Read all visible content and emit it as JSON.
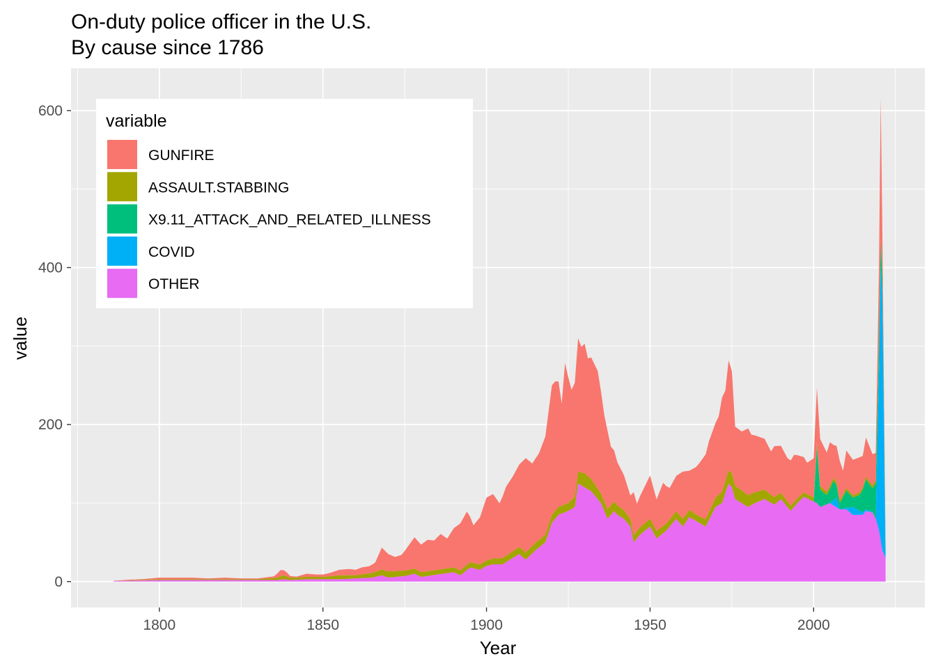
{
  "chart_data": {
    "type": "area",
    "stacked": true,
    "title": "On-duty police officer in the U.S.",
    "subtitle": "By cause since 1786",
    "xlabel": "Year",
    "ylabel": "value",
    "xlim": [
      1773,
      2034
    ],
    "ylim": [
      -33,
      654
    ],
    "x_ticks": [
      1800,
      1850,
      1900,
      1950,
      2000
    ],
    "y_ticks": [
      0,
      200,
      400,
      600
    ],
    "grid": true,
    "legend": {
      "title": "variable",
      "position": "top-left"
    },
    "series": [
      {
        "name": "OTHER",
        "color": "#E76BF3",
        "values": [
          [
            1786,
            1
          ],
          [
            1790,
            1
          ],
          [
            1800,
            2
          ],
          [
            1808,
            2
          ],
          [
            1810,
            2
          ],
          [
            1820,
            2
          ],
          [
            1830,
            2
          ],
          [
            1836,
            2
          ],
          [
            1838,
            3
          ],
          [
            1840,
            2
          ],
          [
            1845,
            3
          ],
          [
            1850,
            3
          ],
          [
            1855,
            3
          ],
          [
            1860,
            4
          ],
          [
            1865,
            5
          ],
          [
            1868,
            8
          ],
          [
            1870,
            5
          ],
          [
            1875,
            7
          ],
          [
            1878,
            10
          ],
          [
            1880,
            6
          ],
          [
            1885,
            9
          ],
          [
            1890,
            12
          ],
          [
            1892,
            8
          ],
          [
            1895,
            18
          ],
          [
            1898,
            15
          ],
          [
            1900,
            20
          ],
          [
            1902,
            22
          ],
          [
            1905,
            22
          ],
          [
            1908,
            30
          ],
          [
            1910,
            35
          ],
          [
            1912,
            28
          ],
          [
            1915,
            40
          ],
          [
            1918,
            50
          ],
          [
            1920,
            75
          ],
          [
            1922,
            85
          ],
          [
            1925,
            90
          ],
          [
            1927,
            95
          ],
          [
            1928,
            125
          ],
          [
            1930,
            120
          ],
          [
            1932,
            115
          ],
          [
            1935,
            100
          ],
          [
            1937,
            80
          ],
          [
            1939,
            90
          ],
          [
            1940,
            85
          ],
          [
            1942,
            80
          ],
          [
            1944,
            70
          ],
          [
            1945,
            50
          ],
          [
            1947,
            60
          ],
          [
            1950,
            70
          ],
          [
            1952,
            55
          ],
          [
            1955,
            65
          ],
          [
            1958,
            80
          ],
          [
            1960,
            70
          ],
          [
            1962,
            82
          ],
          [
            1965,
            75
          ],
          [
            1967,
            70
          ],
          [
            1970,
            95
          ],
          [
            1972,
            100
          ],
          [
            1974,
            125
          ],
          [
            1975,
            120
          ],
          [
            1976,
            105
          ],
          [
            1978,
            100
          ],
          [
            1980,
            95
          ],
          [
            1982,
            100
          ],
          [
            1985,
            105
          ],
          [
            1988,
            98
          ],
          [
            1990,
            105
          ],
          [
            1993,
            90
          ],
          [
            1995,
            100
          ],
          [
            1997,
            108
          ],
          [
            2000,
            102
          ],
          [
            2001,
            100
          ],
          [
            2002,
            95
          ],
          [
            2005,
            100
          ],
          [
            2008,
            92
          ],
          [
            2010,
            92
          ],
          [
            2012,
            85
          ],
          [
            2015,
            85
          ],
          [
            2016,
            90
          ],
          [
            2018,
            88
          ],
          [
            2019,
            80
          ],
          [
            2020,
            65
          ],
          [
            2021,
            40
          ],
          [
            2022,
            30
          ]
        ]
      },
      {
        "name": "COVID",
        "color": "#00B0F6",
        "values": [
          [
            2005,
            0
          ],
          [
            2007,
            12
          ],
          [
            2008,
            0
          ],
          [
            2010,
            2
          ],
          [
            2012,
            10
          ],
          [
            2015,
            3
          ],
          [
            2019,
            0
          ],
          [
            2020,
            205
          ],
          [
            2020.5,
            350
          ],
          [
            2021,
            330
          ],
          [
            2021.5,
            160
          ],
          [
            2022,
            0
          ]
        ]
      },
      {
        "name": "X9.11_ATTACK_AND_RELATED_ILLNESS",
        "color": "#00BF7D",
        "values": [
          [
            2000,
            0
          ],
          [
            2001,
            72
          ],
          [
            2002,
            22
          ],
          [
            2004,
            12
          ],
          [
            2006,
            25
          ],
          [
            2008,
            8
          ],
          [
            2010,
            22
          ],
          [
            2012,
            12
          ],
          [
            2014,
            20
          ],
          [
            2016,
            38
          ],
          [
            2018,
            30
          ],
          [
            2019,
            45
          ],
          [
            2020,
            40
          ],
          [
            2021,
            20
          ],
          [
            2022,
            10
          ]
        ]
      },
      {
        "name": "ASSAULT.STABBING",
        "color": "#A3A500",
        "values": [
          [
            1786,
            0
          ],
          [
            1800,
            1
          ],
          [
            1830,
            1
          ],
          [
            1836,
            3
          ],
          [
            1838,
            5
          ],
          [
            1840,
            3
          ],
          [
            1845,
            3
          ],
          [
            1850,
            3
          ],
          [
            1855,
            5
          ],
          [
            1860,
            4
          ],
          [
            1870,
            8
          ],
          [
            1880,
            6
          ],
          [
            1890,
            6
          ],
          [
            1900,
            7
          ],
          [
            1910,
            9
          ],
          [
            1920,
            10
          ],
          [
            1925,
            10
          ],
          [
            1928,
            15
          ],
          [
            1930,
            18
          ],
          [
            1935,
            12
          ],
          [
            1940,
            12
          ],
          [
            1945,
            9
          ],
          [
            1950,
            10
          ],
          [
            1955,
            9
          ],
          [
            1960,
            10
          ],
          [
            1965,
            8
          ],
          [
            1970,
            12
          ],
          [
            1975,
            18
          ],
          [
            1980,
            15
          ],
          [
            1985,
            12
          ],
          [
            1990,
            8
          ],
          [
            1995,
            6
          ],
          [
            2000,
            5
          ],
          [
            2005,
            4
          ],
          [
            2010,
            3
          ],
          [
            2015,
            3
          ],
          [
            2020,
            4
          ],
          [
            2022,
            2
          ]
        ]
      },
      {
        "name": "GUNFIRE",
        "color": "#F8766D",
        "values": [
          [
            1786,
            0
          ],
          [
            1790,
            1
          ],
          [
            1795,
            1
          ],
          [
            1800,
            2
          ],
          [
            1805,
            2
          ],
          [
            1810,
            2
          ],
          [
            1815,
            1
          ],
          [
            1820,
            2
          ],
          [
            1825,
            1
          ],
          [
            1830,
            1
          ],
          [
            1835,
            2
          ],
          [
            1837,
            8
          ],
          [
            1839,
            5
          ],
          [
            1840,
            2
          ],
          [
            1842,
            1
          ],
          [
            1845,
            4
          ],
          [
            1848,
            3
          ],
          [
            1850,
            3
          ],
          [
            1852,
            4
          ],
          [
            1855,
            7
          ],
          [
            1858,
            8
          ],
          [
            1860,
            7
          ],
          [
            1862,
            9
          ],
          [
            1864,
            9
          ],
          [
            1866,
            12
          ],
          [
            1868,
            28
          ],
          [
            1870,
            22
          ],
          [
            1872,
            18
          ],
          [
            1874,
            20
          ],
          [
            1876,
            30
          ],
          [
            1878,
            40
          ],
          [
            1880,
            35
          ],
          [
            1882,
            40
          ],
          [
            1884,
            38
          ],
          [
            1886,
            45
          ],
          [
            1888,
            38
          ],
          [
            1890,
            50
          ],
          [
            1892,
            60
          ],
          [
            1894,
            68
          ],
          [
            1896,
            48
          ],
          [
            1898,
            60
          ],
          [
            1900,
            80
          ],
          [
            1902,
            82
          ],
          [
            1904,
            70
          ],
          [
            1906,
            88
          ],
          [
            1908,
            95
          ],
          [
            1910,
            105
          ],
          [
            1912,
            120
          ],
          [
            1914,
            105
          ],
          [
            1916,
            110
          ],
          [
            1918,
            125
          ],
          [
            1920,
            165
          ],
          [
            1921,
            165
          ],
          [
            1922,
            160
          ],
          [
            1923,
            130
          ],
          [
            1924,
            180
          ],
          [
            1926,
            140
          ],
          [
            1927,
            145
          ],
          [
            1928,
            170
          ],
          [
            1929,
            160
          ],
          [
            1930,
            165
          ],
          [
            1931,
            150
          ],
          [
            1932,
            155
          ],
          [
            1934,
            150
          ],
          [
            1936,
            110
          ],
          [
            1937,
            100
          ],
          [
            1938,
            75
          ],
          [
            1940,
            55
          ],
          [
            1942,
            45
          ],
          [
            1944,
            30
          ],
          [
            1945,
            55
          ],
          [
            1946,
            35
          ],
          [
            1948,
            45
          ],
          [
            1950,
            55
          ],
          [
            1952,
            40
          ],
          [
            1954,
            55
          ],
          [
            1956,
            40
          ],
          [
            1958,
            45
          ],
          [
            1960,
            60
          ],
          [
            1962,
            50
          ],
          [
            1964,
            60
          ],
          [
            1966,
            75
          ],
          [
            1968,
            90
          ],
          [
            1970,
            95
          ],
          [
            1971,
            100
          ],
          [
            1972,
            120
          ],
          [
            1973,
            115
          ],
          [
            1974,
            140
          ],
          [
            1975,
            130
          ],
          [
            1976,
            75
          ],
          [
            1978,
            75
          ],
          [
            1980,
            85
          ],
          [
            1981,
            75
          ],
          [
            1983,
            70
          ],
          [
            1985,
            65
          ],
          [
            1987,
            55
          ],
          [
            1988,
            65
          ],
          [
            1990,
            60
          ],
          [
            1992,
            55
          ],
          [
            1994,
            60
          ],
          [
            1996,
            50
          ],
          [
            1998,
            40
          ],
          [
            2000,
            50
          ],
          [
            2001,
            70
          ],
          [
            2002,
            60
          ],
          [
            2004,
            50
          ],
          [
            2005,
            55
          ],
          [
            2006,
            42
          ],
          [
            2008,
            50
          ],
          [
            2009,
            30
          ],
          [
            2010,
            48
          ],
          [
            2012,
            45
          ],
          [
            2014,
            45
          ],
          [
            2015,
            40
          ],
          [
            2016,
            50
          ],
          [
            2018,
            40
          ],
          [
            2019,
            35
          ],
          [
            2020,
            90
          ],
          [
            2020.5,
            180
          ],
          [
            2021,
            60
          ],
          [
            2021.5,
            30
          ],
          [
            2022,
            5
          ]
        ]
      }
    ]
  }
}
